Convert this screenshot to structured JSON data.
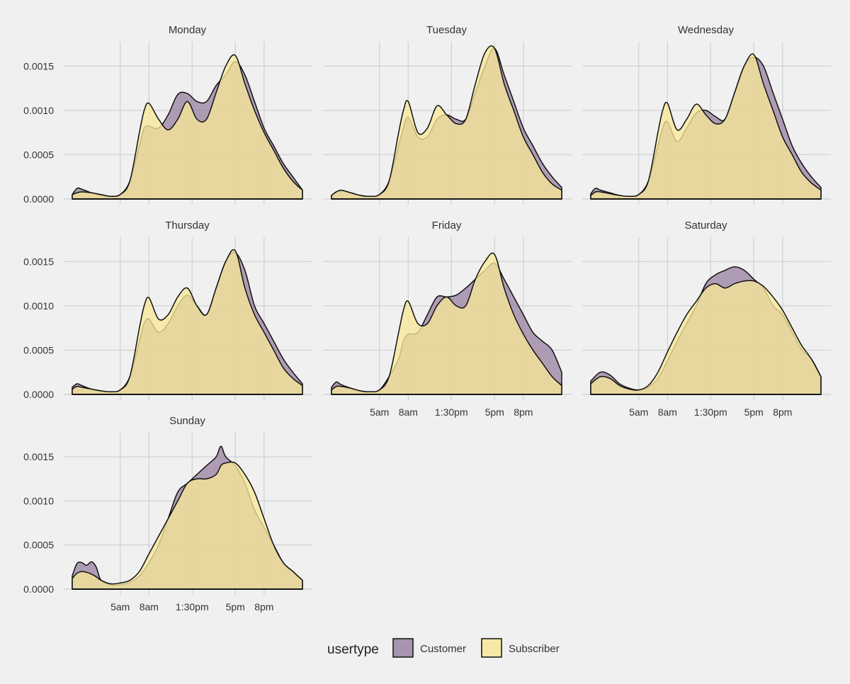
{
  "chart_data": {
    "type": "area",
    "subtype": "faceted-density",
    "title": "",
    "xlabel": "",
    "ylabel": "",
    "x_units": "hour of day",
    "xlim": [
      0,
      24
    ],
    "ylim": [
      0,
      0.00175
    ],
    "y_ticks": [
      0,
      0.0005,
      0.001,
      0.0015
    ],
    "y_tick_labels": [
      "0.0000",
      "0.0005",
      "0.0010",
      "0.0015"
    ],
    "x_ticks": [
      5,
      8,
      12.5,
      17,
      20
    ],
    "x_tick_labels": [
      "5am",
      "8am",
      "1:30pm",
      "5pm",
      "8pm"
    ],
    "grid": true,
    "legend": {
      "title": "usertype",
      "position": "bottom",
      "entries": [
        {
          "name": "Customer",
          "color": "#9b84a3"
        },
        {
          "name": "Subscriber",
          "color": "#f7e898"
        }
      ]
    },
    "facets": [
      {
        "label": "Monday",
        "series": [
          {
            "name": "Customer",
            "x": [
              0,
              0.5,
              1,
              2,
              3,
              4,
              5,
              6,
              7,
              7.5,
              8,
              9,
              10,
              11,
              12,
              13,
              14,
              15,
              16,
              17,
              18,
              19,
              20,
              21,
              22,
              23,
              24
            ],
            "y": [
              5e-05,
              0.00012,
              0.00011,
              7e-05,
              4e-05,
              3e-05,
              5e-05,
              0.0002,
              0.0006,
              0.0008,
              0.00082,
              0.0008,
              0.00095,
              0.00118,
              0.00119,
              0.0011,
              0.0011,
              0.00128,
              0.0014,
              0.00155,
              0.0014,
              0.0011,
              0.0008,
              0.0006,
              0.0004,
              0.00025,
              0.0001
            ]
          },
          {
            "name": "Subscriber",
            "x": [
              0,
              0.5,
              1,
              2,
              3,
              4,
              5,
              6,
              7,
              7.5,
              8,
              9,
              10,
              11,
              12,
              13,
              14,
              15,
              16,
              17,
              18,
              19,
              20,
              21,
              22,
              23,
              24
            ],
            "y": [
              5e-05,
              7e-05,
              8e-05,
              7e-05,
              5e-05,
              3e-05,
              5e-05,
              0.0002,
              0.00075,
              0.001,
              0.00108,
              0.0009,
              0.00078,
              0.0009,
              0.0011,
              0.0009,
              0.0009,
              0.0012,
              0.0015,
              0.00162,
              0.0013,
              0.001,
              0.00075,
              0.00055,
              0.00035,
              0.0002,
              0.0001
            ]
          }
        ]
      },
      {
        "label": "Tuesday",
        "series": [
          {
            "name": "Customer",
            "x": [
              0,
              0.5,
              1,
              2,
              3,
              4,
              5,
              6,
              7,
              7.5,
              8,
              9,
              10,
              11,
              12,
              13,
              14,
              15,
              16,
              17,
              18,
              19,
              20,
              21,
              22,
              23,
              24
            ],
            "y": [
              4e-05,
              8e-05,
              9e-05,
              7e-05,
              4e-05,
              3e-05,
              5e-05,
              0.0002,
              0.0006,
              0.0008,
              0.00092,
              0.0007,
              0.0007,
              0.0009,
              0.00095,
              0.0009,
              0.0009,
              0.0012,
              0.0015,
              0.0017,
              0.0014,
              0.0011,
              0.0008,
              0.0006,
              0.0004,
              0.00025,
              0.00013
            ]
          },
          {
            "name": "Subscriber",
            "x": [
              0,
              0.5,
              1,
              2,
              3,
              4,
              5,
              6,
              7,
              7.5,
              8,
              9,
              10,
              11,
              12,
              13,
              14,
              15,
              16,
              17,
              18,
              19,
              20,
              21,
              22,
              23,
              24
            ],
            "y": [
              4e-05,
              8e-05,
              0.0001,
              7e-05,
              4e-05,
              3e-05,
              5e-05,
              0.0002,
              0.00075,
              0.001,
              0.0011,
              0.00075,
              0.0008,
              0.00105,
              0.00095,
              0.00085,
              0.0009,
              0.0013,
              0.00165,
              0.0017,
              0.0013,
              0.001,
              0.0007,
              0.0005,
              0.0003,
              0.00017,
              0.0001
            ]
          }
        ]
      },
      {
        "label": "Wednesday",
        "series": [
          {
            "name": "Customer",
            "x": [
              0,
              0.5,
              1,
              2,
              3,
              4,
              5,
              6,
              7,
              7.5,
              8,
              9,
              10,
              11,
              12,
              13,
              14,
              15,
              16,
              17,
              18,
              19,
              20,
              21,
              22,
              23,
              24
            ],
            "y": [
              6e-05,
              0.00012,
              0.0001,
              7e-05,
              4e-05,
              3e-05,
              5e-05,
              0.0002,
              0.0006,
              0.0008,
              0.00087,
              0.00065,
              0.0008,
              0.00097,
              0.001,
              0.00093,
              0.0009,
              0.0012,
              0.0015,
              0.0016,
              0.0015,
              0.0012,
              0.0009,
              0.0006,
              0.0004,
              0.00025,
              0.00013
            ]
          },
          {
            "name": "Subscriber",
            "x": [
              0,
              0.5,
              1,
              2,
              3,
              4,
              5,
              6,
              7,
              7.5,
              8,
              9,
              10,
              11,
              12,
              13,
              14,
              15,
              16,
              17,
              18,
              19,
              20,
              21,
              22,
              23,
              24
            ],
            "y": [
              4e-05,
              8e-05,
              8e-05,
              6e-05,
              4e-05,
              3e-05,
              5e-05,
              0.0002,
              0.00075,
              0.001,
              0.00108,
              0.00078,
              0.0009,
              0.00107,
              0.00095,
              0.00085,
              0.0009,
              0.0012,
              0.0015,
              0.00163,
              0.0013,
              0.001,
              0.0007,
              0.0005,
              0.0003,
              0.00018,
              0.0001
            ]
          }
        ]
      },
      {
        "label": "Thursday",
        "series": [
          {
            "name": "Customer",
            "x": [
              0,
              0.5,
              1,
              2,
              3,
              4,
              5,
              6,
              7,
              7.5,
              8,
              9,
              10,
              11,
              12,
              13,
              14,
              15,
              16,
              17,
              18,
              19,
              20,
              21,
              22,
              23,
              24
            ],
            "y": [
              8e-05,
              0.00012,
              0.0001,
              6e-05,
              4e-05,
              3e-05,
              5e-05,
              0.0002,
              0.0006,
              0.0008,
              0.00085,
              0.0007,
              0.0008,
              0.001,
              0.00112,
              0.001,
              0.0009,
              0.0012,
              0.0015,
              0.0016,
              0.0014,
              0.001,
              0.0008,
              0.0006,
              0.0004,
              0.00025,
              0.00012
            ]
          },
          {
            "name": "Subscriber",
            "x": [
              0,
              0.5,
              1,
              2,
              3,
              4,
              5,
              6,
              7,
              7.5,
              8,
              9,
              10,
              11,
              12,
              13,
              14,
              15,
              16,
              17,
              18,
              19,
              20,
              21,
              22,
              23,
              24
            ],
            "y": [
              6e-05,
              9e-05,
              8e-05,
              6e-05,
              4e-05,
              3e-05,
              5e-05,
              0.0002,
              0.00075,
              0.001,
              0.00109,
              0.00085,
              0.0009,
              0.0011,
              0.0012,
              0.001,
              0.0009,
              0.0012,
              0.0015,
              0.00162,
              0.0012,
              0.0009,
              0.0007,
              0.0005,
              0.0003,
              0.00018,
              0.0001
            ]
          }
        ]
      },
      {
        "label": "Friday",
        "series": [
          {
            "name": "Customer",
            "x": [
              0,
              0.5,
              1,
              2,
              3,
              4,
              5,
              6,
              7,
              7.5,
              8,
              9,
              10,
              11,
              12,
              13,
              14,
              15,
              16,
              17,
              18,
              19,
              20,
              21,
              22,
              23,
              24
            ],
            "y": [
              8e-05,
              0.00014,
              0.00011,
              7e-05,
              4e-05,
              3e-05,
              5e-05,
              0.0002,
              0.0004,
              0.0006,
              0.00068,
              0.0007,
              0.0009,
              0.0011,
              0.0011,
              0.00112,
              0.0012,
              0.0013,
              0.0014,
              0.00148,
              0.0013,
              0.0011,
              0.0009,
              0.0007,
              0.0006,
              0.0005,
              0.00025
            ]
          },
          {
            "name": "Subscriber",
            "x": [
              0,
              0.5,
              1,
              2,
              3,
              4,
              5,
              6,
              7,
              7.5,
              8,
              9,
              10,
              11,
              12,
              13,
              14,
              15,
              16,
              17,
              18,
              19,
              20,
              21,
              22,
              23,
              24
            ],
            "y": [
              5e-05,
              9e-05,
              9e-05,
              7e-05,
              4e-05,
              3e-05,
              5e-05,
              0.0002,
              0.0007,
              0.00095,
              0.00105,
              0.0008,
              0.0008,
              0.001,
              0.0011,
              0.001,
              0.001,
              0.0013,
              0.0015,
              0.00158,
              0.0012,
              0.0009,
              0.00068,
              0.0005,
              0.00035,
              0.0002,
              0.0001
            ]
          }
        ]
      },
      {
        "label": "Saturday",
        "series": [
          {
            "name": "Customer",
            "x": [
              0,
              1,
              2,
              3,
              4,
              5,
              6,
              7,
              8,
              9,
              10,
              11,
              12,
              13,
              14,
              15,
              16,
              17,
              18,
              19,
              20,
              21,
              22,
              23,
              24
            ],
            "y": [
              0.00015,
              0.00025,
              0.00022,
              0.00012,
              7e-05,
              5e-05,
              8e-05,
              0.00018,
              0.00038,
              0.0006,
              0.0008,
              0.001,
              0.00125,
              0.00135,
              0.0014,
              0.00144,
              0.0014,
              0.0013,
              0.0012,
              0.001,
              0.0009,
              0.0007,
              0.0005,
              0.0004,
              0.0002
            ]
          },
          {
            "name": "Subscriber",
            "x": [
              0,
              1,
              2,
              3,
              4,
              5,
              6,
              7,
              8,
              9,
              10,
              11,
              12,
              13,
              14,
              15,
              16,
              17,
              18,
              19,
              20,
              21,
              22,
              23,
              24
            ],
            "y": [
              0.00012,
              0.0002,
              0.00018,
              0.0001,
              6e-05,
              5e-05,
              0.0001,
              0.00025,
              0.00048,
              0.0007,
              0.0009,
              0.00105,
              0.0012,
              0.00125,
              0.0012,
              0.00125,
              0.00128,
              0.00128,
              0.00122,
              0.0011,
              0.00095,
              0.00075,
              0.00055,
              0.0004,
              0.0002
            ]
          }
        ]
      },
      {
        "label": "Sunday",
        "series": [
          {
            "name": "Customer",
            "x": [
              0,
              0.5,
              1,
              1.5,
              2,
              2.5,
              3,
              4,
              5,
              6,
              7,
              8,
              9,
              10,
              11,
              12,
              13,
              14,
              15,
              15.5,
              16,
              17,
              18,
              19,
              20,
              21,
              22,
              23,
              24
            ],
            "y": [
              0.00015,
              0.00029,
              0.0003,
              0.00027,
              0.00031,
              0.00025,
              0.0001,
              5e-05,
              5e-05,
              8e-05,
              0.00015,
              0.0003,
              0.0005,
              0.0008,
              0.0011,
              0.0012,
              0.0013,
              0.0014,
              0.0015,
              0.00162,
              0.0015,
              0.0014,
              0.0012,
              0.0009,
              0.0007,
              0.0005,
              0.0003,
              0.0002,
              0.0001
            ]
          },
          {
            "name": "Subscriber",
            "x": [
              0,
              0.5,
              1,
              1.5,
              2,
              2.5,
              3,
              4,
              5,
              6,
              7,
              8,
              9,
              10,
              11,
              12,
              13,
              14,
              15,
              15.5,
              16,
              17,
              18,
              19,
              20,
              21,
              22,
              23,
              24
            ],
            "y": [
              0.00012,
              0.00018,
              0.0002,
              0.00019,
              0.00017,
              0.00014,
              0.0001,
              6e-05,
              7e-05,
              0.0001,
              0.0002,
              0.0004,
              0.0006,
              0.0008,
              0.001,
              0.0012,
              0.00125,
              0.00125,
              0.0013,
              0.0014,
              0.00143,
              0.00143,
              0.0013,
              0.0011,
              0.0008,
              0.0005,
              0.0003,
              0.0002,
              0.0001
            ]
          }
        ]
      }
    ]
  }
}
